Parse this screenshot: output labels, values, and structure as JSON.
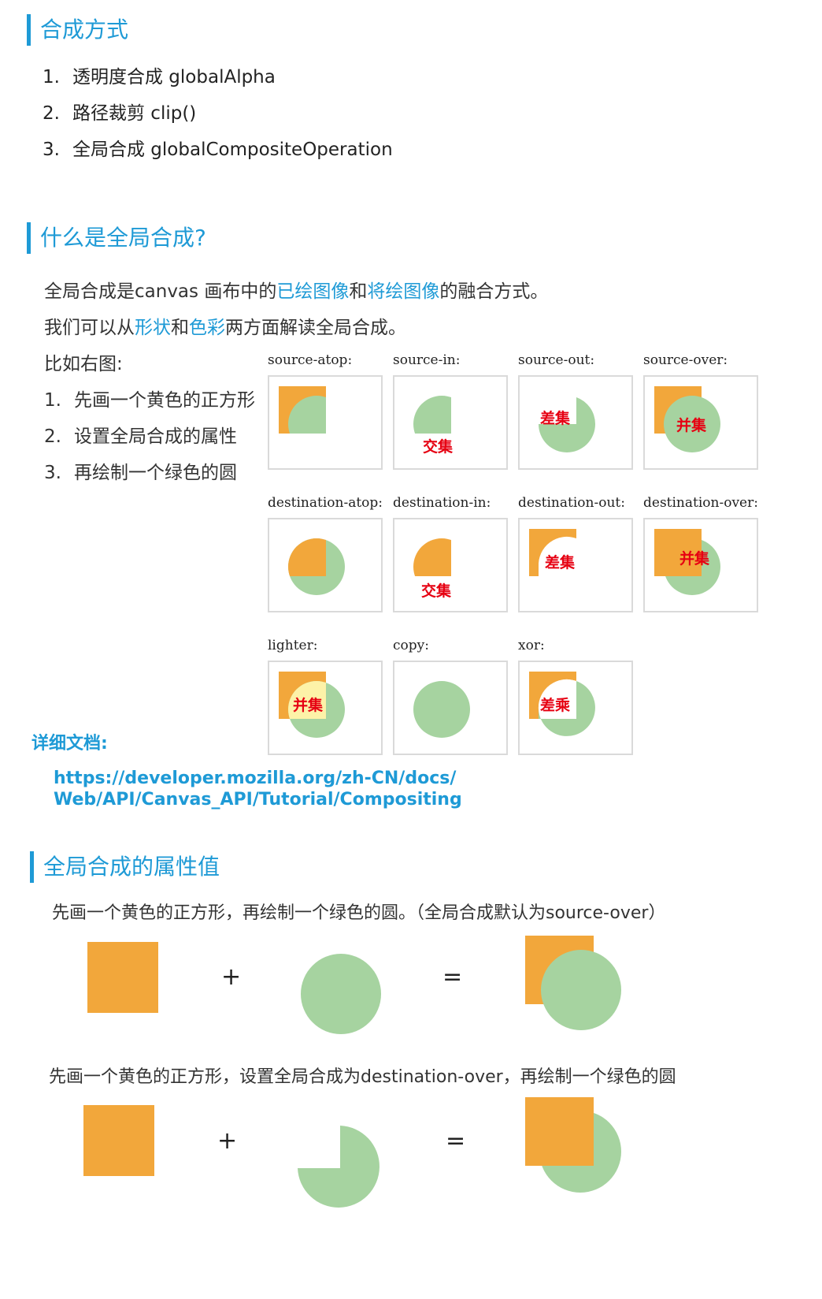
{
  "section1": {
    "title": "合成方式",
    "items": [
      {
        "num": "1.",
        "text": "透明度合成 globalAlpha"
      },
      {
        "num": "2.",
        "text": "路径裁剪 clip()"
      },
      {
        "num": "3.",
        "text": "全局合成 globalCompositeOperation"
      }
    ]
  },
  "section2": {
    "title": "什么是全局合成?",
    "p1": {
      "a": "全局合成是canvas 画布中的",
      "b": "已绘图像",
      "c": "和",
      "d": "将绘图像",
      "e": "的融合方式。"
    },
    "p2": {
      "a": "我们可以从",
      "b": "形状",
      "c": "和",
      "d": "色彩",
      "e": "两方面解读全局合成。"
    },
    "example_label": "比如右图:",
    "steps": [
      {
        "num": "1.",
        "text": "先画一个黄色的正方形"
      },
      {
        "num": "2.",
        "text": "设置全局合成的属性"
      },
      {
        "num": "3.",
        "text": "再绘制一个绿色的圆"
      }
    ],
    "demos": [
      {
        "label": "source-atop:",
        "tag": ""
      },
      {
        "label": "source-in:",
        "tag": "交集"
      },
      {
        "label": "source-out:",
        "tag": "差集"
      },
      {
        "label": "source-over:",
        "tag": "并集"
      },
      {
        "label": "destination-atop:",
        "tag": ""
      },
      {
        "label": "destination-in:",
        "tag": "交集"
      },
      {
        "label": "destination-out:",
        "tag": "差集"
      },
      {
        "label": "destination-over:",
        "tag": "并集"
      },
      {
        "label": "lighter:",
        "tag": "并集"
      },
      {
        "label": "copy:",
        "tag": ""
      },
      {
        "label": "xor:",
        "tag": "差乘"
      }
    ],
    "doc_label": "详细文档:",
    "doc_link_line1": "https://developer.mozilla.org/zh-CN/docs/",
    "doc_link_line2": "Web/API/Canvas_API/Tutorial/Compositing"
  },
  "section3": {
    "title": "全局合成的属性值",
    "desc1": "先画一个黄色的正方形，再绘制一个绿色的圆。（全局合成默认为source-over）",
    "desc2": "先画一个黄色的正方形，设置全局合成为destination-over，再绘制一个绿色的圆",
    "plus": "+",
    "equals": "="
  },
  "colors": {
    "accent": "#1e9ad6",
    "yellow": "#f2a73b",
    "green": "#a6d3a0",
    "red": "#e60012"
  }
}
